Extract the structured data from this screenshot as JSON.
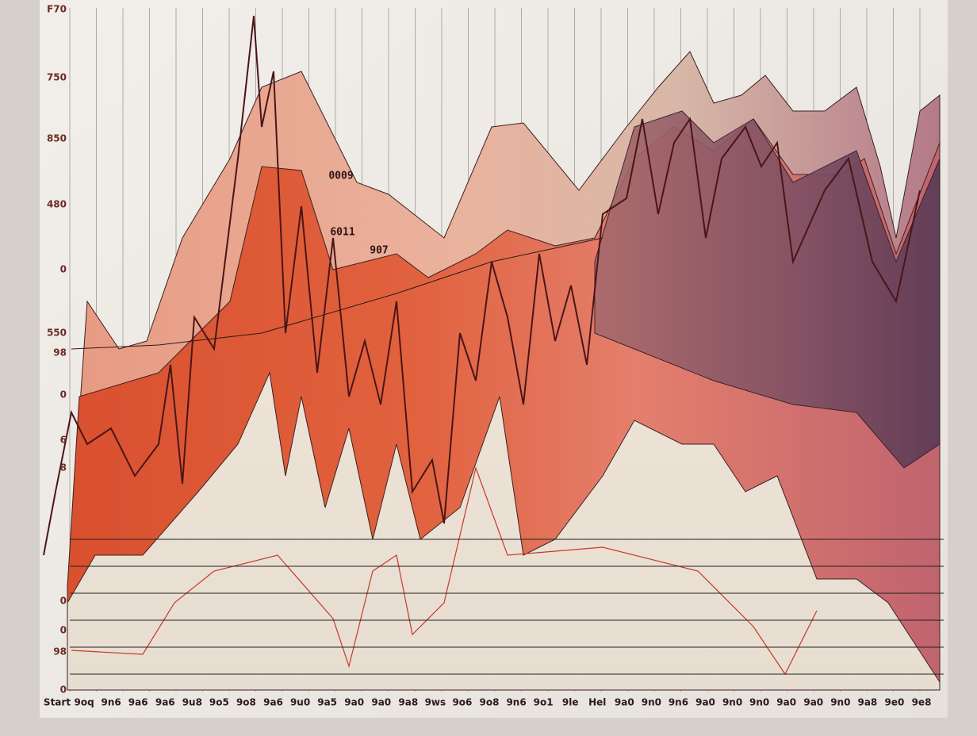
{
  "poster": {
    "y_labels": [
      "F70",
      "750",
      "850",
      "480",
      "0",
      "550",
      "98",
      "0",
      "6",
      "8",
      "0",
      "0",
      "98",
      "0"
    ],
    "x_labels": [
      "Start",
      "9oq",
      "9n6",
      "9a6",
      "9a6",
      "9u8",
      "9o5",
      "9o8",
      "9a6",
      "9u0",
      "9a5",
      "9a0",
      "9a0",
      "9a8",
      "9ws",
      "9o6",
      "9o8",
      "9n6",
      "9o1",
      "9le",
      "Hel",
      "9a0",
      "9n0",
      "9n6",
      "9a0",
      "9n0",
      "9n0",
      "9a0",
      "9a0",
      "9n0",
      "9a8",
      "9e0",
      "9e8"
    ],
    "annotations": [
      "0009",
      "6011",
      "907"
    ]
  }
}
